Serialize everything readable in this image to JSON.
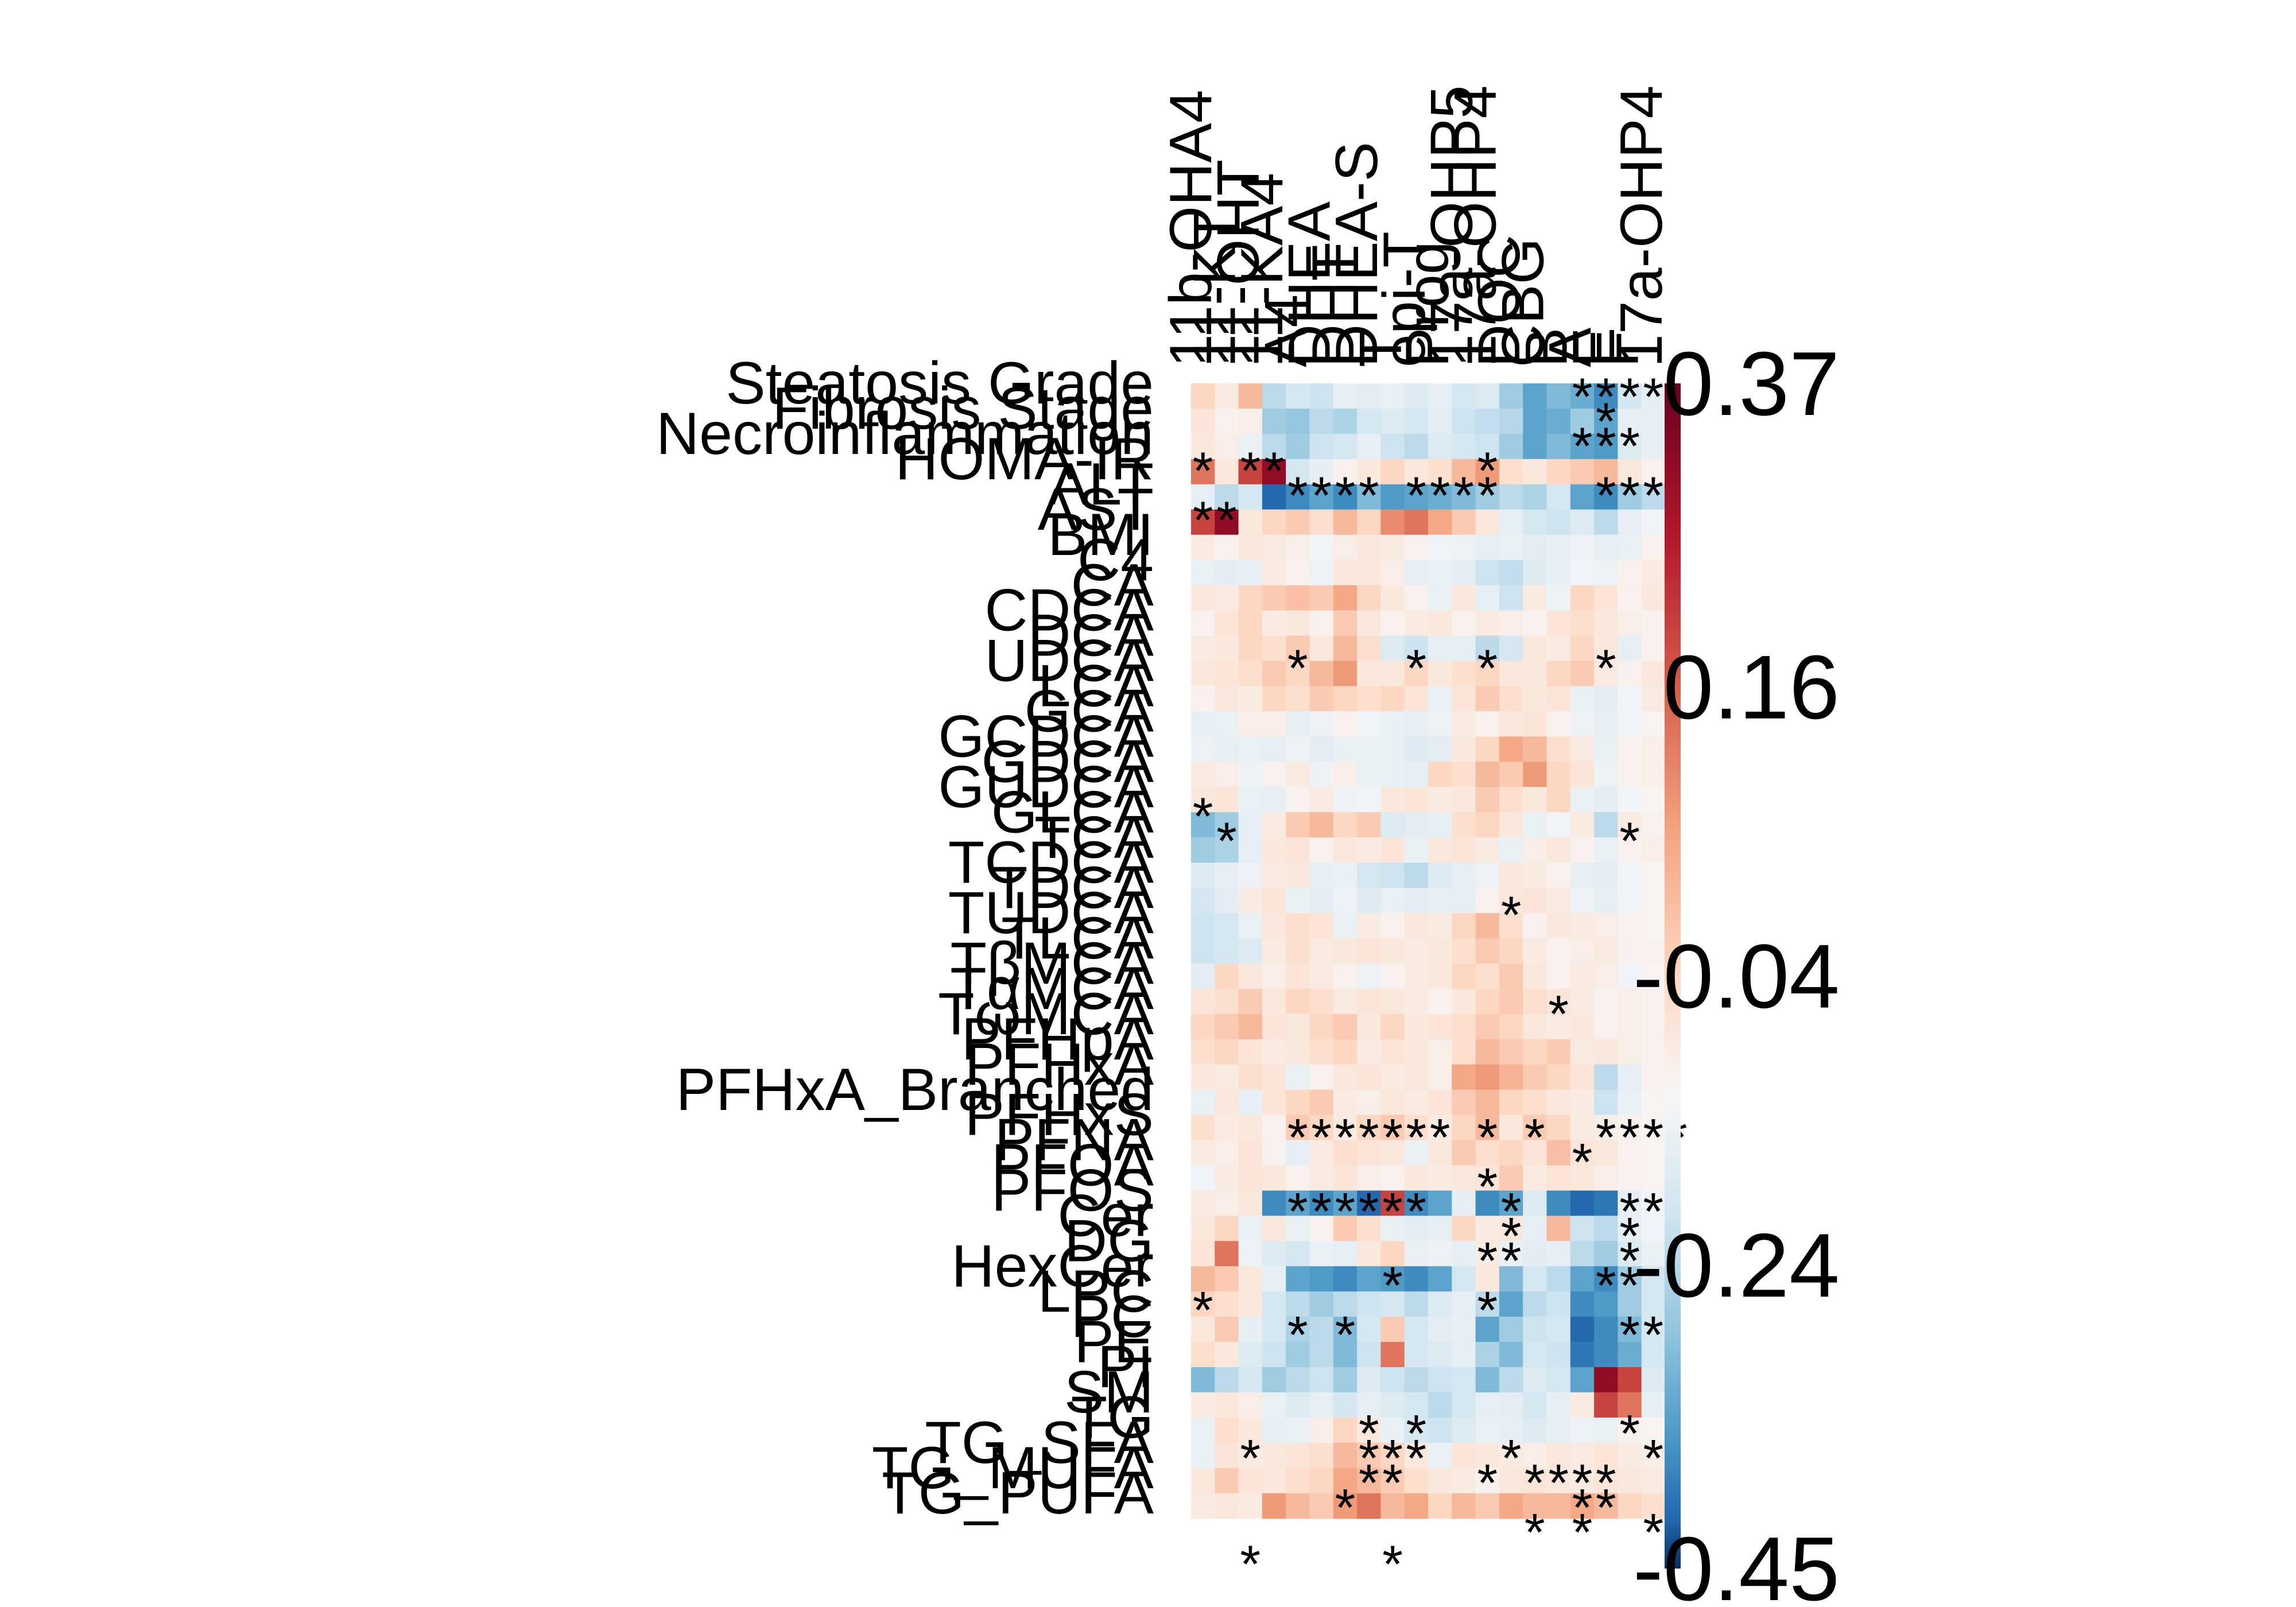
{
  "chart_data": {
    "type": "heatmap",
    "title": "",
    "xlabel": "",
    "ylabel": "",
    "colorscale": {
      "min": -0.45,
      "max": 0.37,
      "low_color": "#053061",
      "mid_color": "#f7f7f7",
      "high_color": "#67001f",
      "ticks": [
        "0.37",
        "0.16",
        "-0.04",
        "-0.24",
        "-0.45"
      ],
      "tick_values": [
        0.37,
        0.16,
        -0.04,
        -0.24,
        -0.45
      ]
    },
    "columns": [
      "11b-OHA4",
      "11-KT",
      "11-OHT",
      "11-KA4",
      "A4",
      "DHEA",
      "DHT",
      "DHEA-S",
      "T",
      "epi-T",
      "Prog",
      "17a-OHP5",
      "17a-OHP4",
      "DOC",
      "CBG",
      "B",
      "A",
      "E",
      "F",
      "17a-OHP4"
    ],
    "rows": [
      "Steatosis Grade",
      "Fibrosis Stage",
      "Necroinflammation",
      "HOMA-IR",
      "ALT",
      "AST",
      "BMI",
      "C4",
      "CA",
      "CDCA",
      "DCA",
      "UDCA",
      "LCA",
      "GCA",
      "GCDCA",
      "GDCA",
      "GUDCA",
      "GLCA",
      "TCA",
      "TCDCA",
      "TDCA",
      "TUDCA",
      "TLCA",
      "TβMCA",
      "TαMCA",
      "TωMCA",
      "PFHpA",
      "PFHxA",
      "PFHxA_Branched",
      "PFHxS",
      "PFNA",
      "PFOA",
      "PFOS",
      "Cer",
      "DG",
      "HexCer",
      "LPC",
      "PC",
      "PE",
      "PI",
      "SM",
      "TG",
      "TG_SFA",
      "TG_MUFA",
      "TG_PUFA"
    ],
    "values": [
      [
        0.1,
        0.04,
        0.15,
        -0.15,
        -0.1,
        -0.12,
        -0.05,
        -0.06,
        -0.04,
        -0.08,
        -0.05,
        -0.1,
        -0.08,
        -0.2,
        -0.3,
        -0.25,
        -0.28,
        -0.35,
        -0.1,
        -0.05
      ],
      [
        0.06,
        0.02,
        0.03,
        -0.2,
        -0.22,
        -0.15,
        -0.18,
        -0.1,
        -0.08,
        -0.1,
        -0.06,
        -0.12,
        -0.14,
        -0.16,
        -0.3,
        -0.28,
        -0.2,
        -0.3,
        -0.05,
        -0.05
      ],
      [
        0.05,
        0.03,
        -0.04,
        -0.15,
        -0.2,
        -0.12,
        -0.1,
        -0.05,
        -0.12,
        -0.15,
        -0.08,
        -0.1,
        -0.12,
        -0.2,
        -0.3,
        -0.25,
        -0.3,
        -0.32,
        -0.08,
        -0.05
      ],
      [
        0.25,
        0.05,
        0.3,
        0.35,
        -0.1,
        -0.05,
        0.02,
        0.05,
        0.1,
        0.05,
        0.08,
        0.15,
        0.2,
        0.08,
        0.05,
        0.1,
        0.12,
        0.15,
        0.05,
        0.02
      ],
      [
        -0.05,
        -0.15,
        -0.1,
        -0.4,
        -0.35,
        -0.3,
        -0.35,
        -0.25,
        -0.32,
        -0.3,
        -0.28,
        -0.25,
        -0.2,
        -0.15,
        -0.18,
        -0.1,
        -0.3,
        -0.35,
        -0.2,
        -0.15
      ],
      [
        0.3,
        0.35,
        0.05,
        0.1,
        0.12,
        0.08,
        0.15,
        0.1,
        0.22,
        0.25,
        0.18,
        0.12,
        0.05,
        -0.05,
        -0.1,
        -0.12,
        -0.08,
        -0.15,
        -0.05,
        -0.02
      ],
      [
        0.04,
        0.02,
        0.05,
        0.04,
        0.03,
        -0.02,
        0.03,
        0.05,
        0.04,
        0.02,
        -0.02,
        -0.03,
        -0.05,
        -0.04,
        -0.06,
        -0.05,
        -0.03,
        -0.05,
        -0.04,
        0.02
      ],
      [
        -0.04,
        -0.06,
        -0.05,
        0.04,
        0.02,
        -0.03,
        0.05,
        0.05,
        0.03,
        -0.05,
        -0.04,
        -0.06,
        -0.12,
        -0.14,
        -0.08,
        -0.05,
        -0.02,
        -0.03,
        0.02,
        0.04
      ],
      [
        0.05,
        0.04,
        0.1,
        0.12,
        0.14,
        0.12,
        0.18,
        0.1,
        0.05,
        0.02,
        -0.04,
        0.05,
        -0.05,
        -0.12,
        0.04,
        -0.03,
        0.1,
        0.06,
        0.02,
        0.05
      ],
      [
        0.02,
        0.06,
        0.1,
        0.04,
        0.05,
        0.02,
        0.12,
        0.05,
        0.02,
        0.04,
        0.05,
        0.02,
        0.04,
        0.03,
        0.02,
        0.06,
        0.08,
        0.05,
        0.03,
        0.02
      ],
      [
        0.04,
        0.05,
        0.1,
        0.08,
        0.12,
        0.05,
        0.15,
        0.08,
        -0.08,
        -0.12,
        -0.05,
        -0.05,
        -0.15,
        -0.1,
        0.05,
        0.04,
        0.1,
        0.05,
        -0.05,
        0.02
      ],
      [
        0.05,
        0.06,
        0.08,
        0.12,
        0.1,
        0.15,
        0.2,
        0.05,
        0.05,
        0.1,
        0.05,
        0.08,
        0.1,
        0.05,
        0.05,
        0.1,
        0.12,
        0.04,
        0.02,
        0.05
      ],
      [
        0.02,
        0.05,
        0.04,
        0.1,
        0.08,
        0.12,
        0.1,
        0.08,
        0.1,
        0.06,
        -0.04,
        0.06,
        0.12,
        0.08,
        0.05,
        0.06,
        -0.04,
        -0.06,
        -0.02,
        0.04
      ],
      [
        -0.05,
        -0.04,
        0.03,
        0.03,
        -0.05,
        -0.03,
        0.02,
        -0.02,
        -0.04,
        -0.05,
        -0.03,
        0.04,
        0.02,
        0.05,
        0.06,
        0.02,
        -0.03,
        -0.05,
        -0.02,
        0.01
      ],
      [
        -0.03,
        -0.05,
        -0.04,
        -0.05,
        -0.03,
        -0.06,
        -0.04,
        -0.04,
        -0.04,
        -0.08,
        -0.06,
        0.05,
        0.1,
        0.18,
        0.15,
        0.08,
        0.04,
        -0.04,
        0.02,
        0.03
      ],
      [
        0.04,
        0.03,
        -0.03,
        0.02,
        0.04,
        -0.03,
        0.03,
        -0.04,
        -0.04,
        -0.05,
        0.1,
        0.08,
        0.15,
        0.12,
        0.2,
        0.1,
        0.06,
        -0.03,
        0.02,
        0.03
      ],
      [
        0.05,
        0.06,
        -0.04,
        -0.05,
        0.02,
        0.04,
        -0.03,
        -0.02,
        0.05,
        0.06,
        0.04,
        0.05,
        0.12,
        0.08,
        0.05,
        0.1,
        -0.04,
        -0.06,
        -0.02,
        0.01
      ],
      [
        -0.25,
        -0.2,
        -0.05,
        0.04,
        0.12,
        0.15,
        0.1,
        0.12,
        -0.08,
        -0.06,
        -0.05,
        0.08,
        0.1,
        0.05,
        -0.04,
        -0.02,
        0.04,
        -0.15,
        0.04,
        0.02
      ],
      [
        -0.2,
        -0.18,
        -0.05,
        0.05,
        0.06,
        0.02,
        0.05,
        0.04,
        0.06,
        -0.04,
        0.05,
        0.06,
        0.04,
        -0.04,
        0.03,
        0.05,
        0.02,
        -0.04,
        0.02,
        0.03
      ],
      [
        -0.08,
        -0.05,
        -0.03,
        0.04,
        0.05,
        -0.05,
        -0.04,
        -0.1,
        -0.12,
        -0.15,
        -0.08,
        -0.05,
        -0.03,
        0.05,
        0.04,
        0.02,
        -0.05,
        -0.06,
        -0.02,
        0.01
      ],
      [
        -0.1,
        -0.06,
        0.04,
        0.06,
        -0.04,
        -0.06,
        -0.03,
        -0.08,
        -0.04,
        -0.06,
        -0.05,
        -0.05,
        0.02,
        0.05,
        0.06,
        0.04,
        -0.03,
        -0.05,
        -0.02,
        0.01
      ],
      [
        -0.12,
        -0.1,
        -0.04,
        0.05,
        0.08,
        0.06,
        -0.04,
        0.04,
        0.02,
        0.05,
        0.04,
        0.1,
        0.15,
        0.08,
        0.02,
        0.05,
        0.04,
        0.03,
        0.02,
        0.01
      ],
      [
        -0.12,
        -0.1,
        -0.08,
        0.04,
        0.08,
        0.04,
        0.05,
        0.06,
        0.05,
        0.04,
        0.05,
        0.08,
        0.12,
        0.1,
        0.04,
        0.02,
        0.03,
        0.04,
        0.02,
        0.02
      ],
      [
        -0.06,
        0.1,
        0.05,
        0.03,
        0.06,
        0.04,
        0.02,
        -0.03,
        0.02,
        0.04,
        0.05,
        0.1,
        0.08,
        0.12,
        0.05,
        0.02,
        0.04,
        0.03,
        -0.02,
        0.01
      ],
      [
        0.06,
        0.08,
        0.12,
        0.05,
        0.1,
        0.08,
        0.04,
        0.06,
        0.05,
        0.04,
        0.02,
        0.05,
        0.1,
        0.12,
        0.08,
        0.06,
        0.04,
        0.02,
        0.03,
        0.02
      ],
      [
        0.1,
        0.12,
        0.15,
        0.06,
        0.05,
        0.1,
        0.12,
        0.05,
        0.1,
        0.05,
        0.06,
        0.08,
        0.12,
        0.1,
        0.05,
        0.04,
        0.05,
        0.02,
        0.03,
        0.02
      ],
      [
        0.08,
        0.1,
        0.06,
        0.04,
        0.05,
        0.08,
        0.1,
        0.04,
        0.06,
        0.05,
        0.03,
        0.08,
        0.15,
        0.12,
        0.1,
        0.12,
        0.04,
        0.05,
        0.03,
        0.02
      ],
      [
        0.05,
        0.04,
        0.08,
        0.06,
        -0.04,
        0.02,
        0.05,
        0.06,
        0.04,
        0.05,
        0.03,
        0.18,
        0.2,
        0.16,
        0.12,
        0.1,
        0.06,
        -0.15,
        -0.05,
        0.02
      ],
      [
        -0.04,
        0.05,
        -0.05,
        0.06,
        0.1,
        0.12,
        0.04,
        0.03,
        0.05,
        0.04,
        0.06,
        0.12,
        0.15,
        0.1,
        0.08,
        0.05,
        0.04,
        -0.12,
        -0.04,
        0.01
      ],
      [
        0.08,
        0.04,
        0.05,
        0.02,
        0.12,
        0.1,
        0.04,
        0.1,
        0.12,
        0.08,
        0.04,
        0.1,
        0.15,
        0.05,
        0.12,
        0.1,
        0.04,
        0.03,
        0.02,
        0.01
      ],
      [
        0.04,
        0.03,
        0.06,
        0.02,
        -0.05,
        0.04,
        0.08,
        0.06,
        0.05,
        -0.04,
        0.05,
        0.12,
        0.08,
        0.1,
        0.06,
        0.14,
        0.06,
        0.05,
        0.02,
        0.01
      ],
      [
        -0.02,
        0.04,
        0.06,
        0.05,
        0.02,
        0.04,
        0.06,
        0.03,
        0.02,
        0.05,
        0.04,
        0.05,
        0.06,
        0.12,
        0.04,
        0.06,
        0.05,
        0.03,
        0.02,
        0.01
      ],
      [
        0.04,
        0.03,
        0.05,
        -0.35,
        -0.3,
        -0.35,
        -0.3,
        -0.4,
        0.3,
        -0.35,
        -0.3,
        -0.05,
        -0.35,
        -0.3,
        -0.08,
        -0.35,
        -0.4,
        -0.38,
        -0.05,
        -0.02
      ],
      [
        0.05,
        0.1,
        -0.04,
        0.05,
        -0.04,
        0.02,
        0.12,
        0.08,
        -0.04,
        -0.06,
        -0.05,
        0.1,
        0.04,
        0.05,
        -0.05,
        0.15,
        -0.12,
        -0.15,
        -0.05,
        -0.02
      ],
      [
        0.06,
        0.25,
        -0.03,
        -0.08,
        -0.1,
        -0.04,
        -0.05,
        0.05,
        0.1,
        -0.04,
        -0.03,
        -0.05,
        0.04,
        -0.04,
        -0.06,
        -0.05,
        -0.15,
        -0.2,
        -0.08,
        -0.04
      ],
      [
        0.15,
        0.12,
        0.05,
        -0.05,
        -0.3,
        -0.32,
        -0.35,
        -0.3,
        -0.32,
        -0.35,
        -0.3,
        -0.1,
        0.05,
        -0.25,
        -0.1,
        -0.15,
        -0.3,
        -0.35,
        -0.2,
        -0.1
      ],
      [
        0.1,
        0.08,
        0.05,
        -0.1,
        -0.15,
        -0.2,
        -0.15,
        -0.12,
        -0.1,
        -0.15,
        -0.08,
        -0.05,
        -0.15,
        -0.3,
        -0.15,
        -0.12,
        -0.35,
        -0.32,
        -0.2,
        -0.1
      ],
      [
        0.05,
        0.12,
        -0.05,
        -0.1,
        -0.18,
        -0.15,
        -0.25,
        -0.1,
        0.12,
        -0.1,
        -0.06,
        -0.05,
        -0.3,
        -0.2,
        -0.12,
        -0.1,
        -0.4,
        -0.35,
        -0.25,
        -0.1
      ],
      [
        0.08,
        0.05,
        -0.08,
        -0.12,
        -0.2,
        -0.15,
        -0.25,
        -0.12,
        0.25,
        -0.1,
        -0.08,
        -0.05,
        -0.18,
        -0.25,
        -0.1,
        -0.12,
        -0.38,
        -0.35,
        -0.28,
        -0.1
      ],
      [
        -0.25,
        -0.15,
        -0.1,
        -0.2,
        -0.15,
        -0.12,
        -0.2,
        -0.08,
        -0.12,
        -0.15,
        -0.12,
        -0.1,
        -0.25,
        -0.15,
        -0.08,
        -0.1,
        -0.3,
        0.35,
        0.3,
        -0.08
      ],
      [
        0.04,
        0.05,
        0.03,
        -0.04,
        -0.08,
        -0.05,
        -0.1,
        -0.05,
        -0.08,
        -0.1,
        -0.15,
        -0.1,
        -0.05,
        -0.06,
        -0.1,
        -0.05,
        0.04,
        0.3,
        0.25,
        -0.05
      ],
      [
        -0.04,
        0.08,
        0.05,
        -0.05,
        -0.04,
        0.03,
        0.1,
        0.05,
        -0.04,
        -0.1,
        -0.12,
        -0.08,
        -0.04,
        -0.05,
        -0.08,
        -0.05,
        -0.03,
        -0.04,
        0.02,
        0.01
      ],
      [
        -0.04,
        0.06,
        0.04,
        0.05,
        0.06,
        0.08,
        0.15,
        0.12,
        0.1,
        0.05,
        -0.04,
        0.06,
        0.05,
        0.04,
        0.03,
        0.05,
        0.04,
        0.06,
        0.04,
        0.03
      ],
      [
        0.05,
        0.12,
        0.06,
        0.05,
        0.08,
        0.1,
        0.18,
        0.15,
        0.12,
        0.08,
        0.05,
        0.04,
        0.02,
        0.05,
        0.06,
        0.05,
        0.04,
        0.06,
        0.05,
        0.04
      ],
      [
        0.04,
        0.05,
        0.04,
        0.2,
        0.15,
        0.12,
        0.2,
        0.25,
        0.15,
        0.18,
        0.1,
        0.15,
        0.12,
        0.18,
        0.15,
        0.15,
        0.18,
        0.15,
        0.1,
        0.08
      ]
    ],
    "significant": [
      [
        16,
        0
      ],
      [
        17,
        0
      ],
      [
        18,
        0
      ],
      [
        19,
        0
      ],
      [
        17,
        1
      ],
      [
        16,
        2
      ],
      [
        17,
        2
      ],
      [
        18,
        2
      ],
      [
        0,
        3
      ],
      [
        2,
        3
      ],
      [
        3,
        3
      ],
      [
        12,
        3
      ],
      [
        4,
        4
      ],
      [
        5,
        4
      ],
      [
        6,
        4
      ],
      [
        7,
        4
      ],
      [
        9,
        4
      ],
      [
        10,
        4
      ],
      [
        11,
        4
      ],
      [
        12,
        4
      ],
      [
        17,
        4
      ],
      [
        18,
        4
      ],
      [
        19,
        4
      ],
      [
        0,
        5
      ],
      [
        1,
        5
      ],
      [
        4,
        11
      ],
      [
        9,
        11
      ],
      [
        12,
        11
      ],
      [
        17,
        11
      ],
      [
        0,
        17
      ],
      [
        1,
        18
      ],
      [
        18,
        18
      ],
      [
        13,
        21
      ],
      [
        15,
        25
      ],
      [
        4,
        30
      ],
      [
        5,
        30
      ],
      [
        6,
        30
      ],
      [
        7,
        30
      ],
      [
        8,
        30
      ],
      [
        9,
        30
      ],
      [
        10,
        30
      ],
      [
        12,
        30
      ],
      [
        14,
        30
      ],
      [
        17,
        30
      ],
      [
        18,
        30
      ],
      [
        19,
        30
      ],
      [
        20,
        30
      ],
      [
        16,
        31
      ],
      [
        12,
        32
      ],
      [
        4,
        33
      ],
      [
        5,
        33
      ],
      [
        6,
        33
      ],
      [
        7,
        33
      ],
      [
        8,
        33
      ],
      [
        9,
        33
      ],
      [
        13,
        33
      ],
      [
        18,
        33
      ],
      [
        19,
        33
      ],
      [
        13,
        34
      ],
      [
        18,
        34
      ],
      [
        12,
        35
      ],
      [
        13,
        35
      ],
      [
        18,
        35
      ],
      [
        8,
        36
      ],
      [
        17,
        36
      ],
      [
        18,
        36
      ],
      [
        0,
        37
      ],
      [
        12,
        37
      ],
      [
        4,
        38
      ],
      [
        6,
        38
      ],
      [
        18,
        38
      ],
      [
        19,
        38
      ],
      [
        7,
        42
      ],
      [
        9,
        42
      ],
      [
        18,
        42
      ],
      [
        2,
        43
      ],
      [
        7,
        43
      ],
      [
        8,
        43
      ],
      [
        9,
        43
      ],
      [
        13,
        43
      ],
      [
        19,
        43
      ],
      [
        7,
        44
      ],
      [
        8,
        44
      ],
      [
        12,
        44
      ],
      [
        14,
        44
      ],
      [
        15,
        44
      ],
      [
        16,
        44
      ],
      [
        17,
        44
      ],
      [
        6,
        45
      ],
      [
        16,
        45
      ],
      [
        17,
        45
      ],
      [
        14,
        46
      ],
      [
        16,
        46
      ],
      [
        19,
        46
      ]
    ],
    "significant_bottom": [
      [
        2,
        0
      ],
      [
        8,
        0
      ]
    ]
  }
}
